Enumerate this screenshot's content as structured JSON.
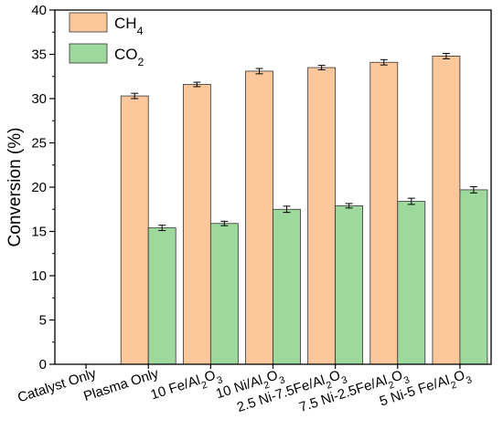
{
  "chart_data": {
    "type": "bar",
    "ylabel": "Conversion (%)",
    "xlabel": "",
    "ylim": [
      0,
      40
    ],
    "yticks": [
      0,
      5,
      10,
      15,
      20,
      25,
      30,
      35,
      40
    ],
    "legend_position": "top-left",
    "grid": false,
    "categories": [
      {
        "parts": [
          {
            "t": "Catalyst Only"
          }
        ]
      },
      {
        "parts": [
          {
            "t": "Plasma Only"
          }
        ]
      },
      {
        "parts": [
          {
            "t": "10 Fe/Al"
          },
          {
            "t": "2",
            "sub": true
          },
          {
            "t": "O"
          },
          {
            "t": "3",
            "sub": true
          }
        ]
      },
      {
        "parts": [
          {
            "t": "10 Ni/Al"
          },
          {
            "t": "2",
            "sub": true
          },
          {
            "t": "O"
          },
          {
            "t": "3",
            "sub": true
          }
        ]
      },
      {
        "parts": [
          {
            "t": "2.5 Ni-7.5Fe/Al"
          },
          {
            "t": "2",
            "sub": true
          },
          {
            "t": "O"
          },
          {
            "t": "3",
            "sub": true
          }
        ]
      },
      {
        "parts": [
          {
            "t": "7.5 Ni-2.5Fe/Al"
          },
          {
            "t": "2",
            "sub": true
          },
          {
            "t": "O"
          },
          {
            "t": "3",
            "sub": true
          }
        ]
      },
      {
        "parts": [
          {
            "t": "5 Ni-5 Fe/Al"
          },
          {
            "t": "2",
            "sub": true
          },
          {
            "t": "O"
          },
          {
            "t": "3",
            "sub": true
          }
        ]
      }
    ],
    "series": [
      {
        "name_parts": [
          {
            "t": "CH"
          },
          {
            "t": "4",
            "sub": true
          }
        ],
        "color": "#FBC79B",
        "values": [
          0,
          30.3,
          31.6,
          33.1,
          33.5,
          34.1,
          34.8
        ],
        "errors": [
          0,
          0.3,
          0.25,
          0.3,
          0.25,
          0.3,
          0.3
        ]
      },
      {
        "name_parts": [
          {
            "t": "CO"
          },
          {
            "t": "2",
            "sub": true
          }
        ],
        "color": "#9DD89D",
        "values": [
          0,
          15.4,
          15.9,
          17.5,
          17.9,
          18.4,
          19.7
        ],
        "errors": [
          0,
          0.3,
          0.25,
          0.35,
          0.25,
          0.35,
          0.35
        ]
      }
    ]
  }
}
